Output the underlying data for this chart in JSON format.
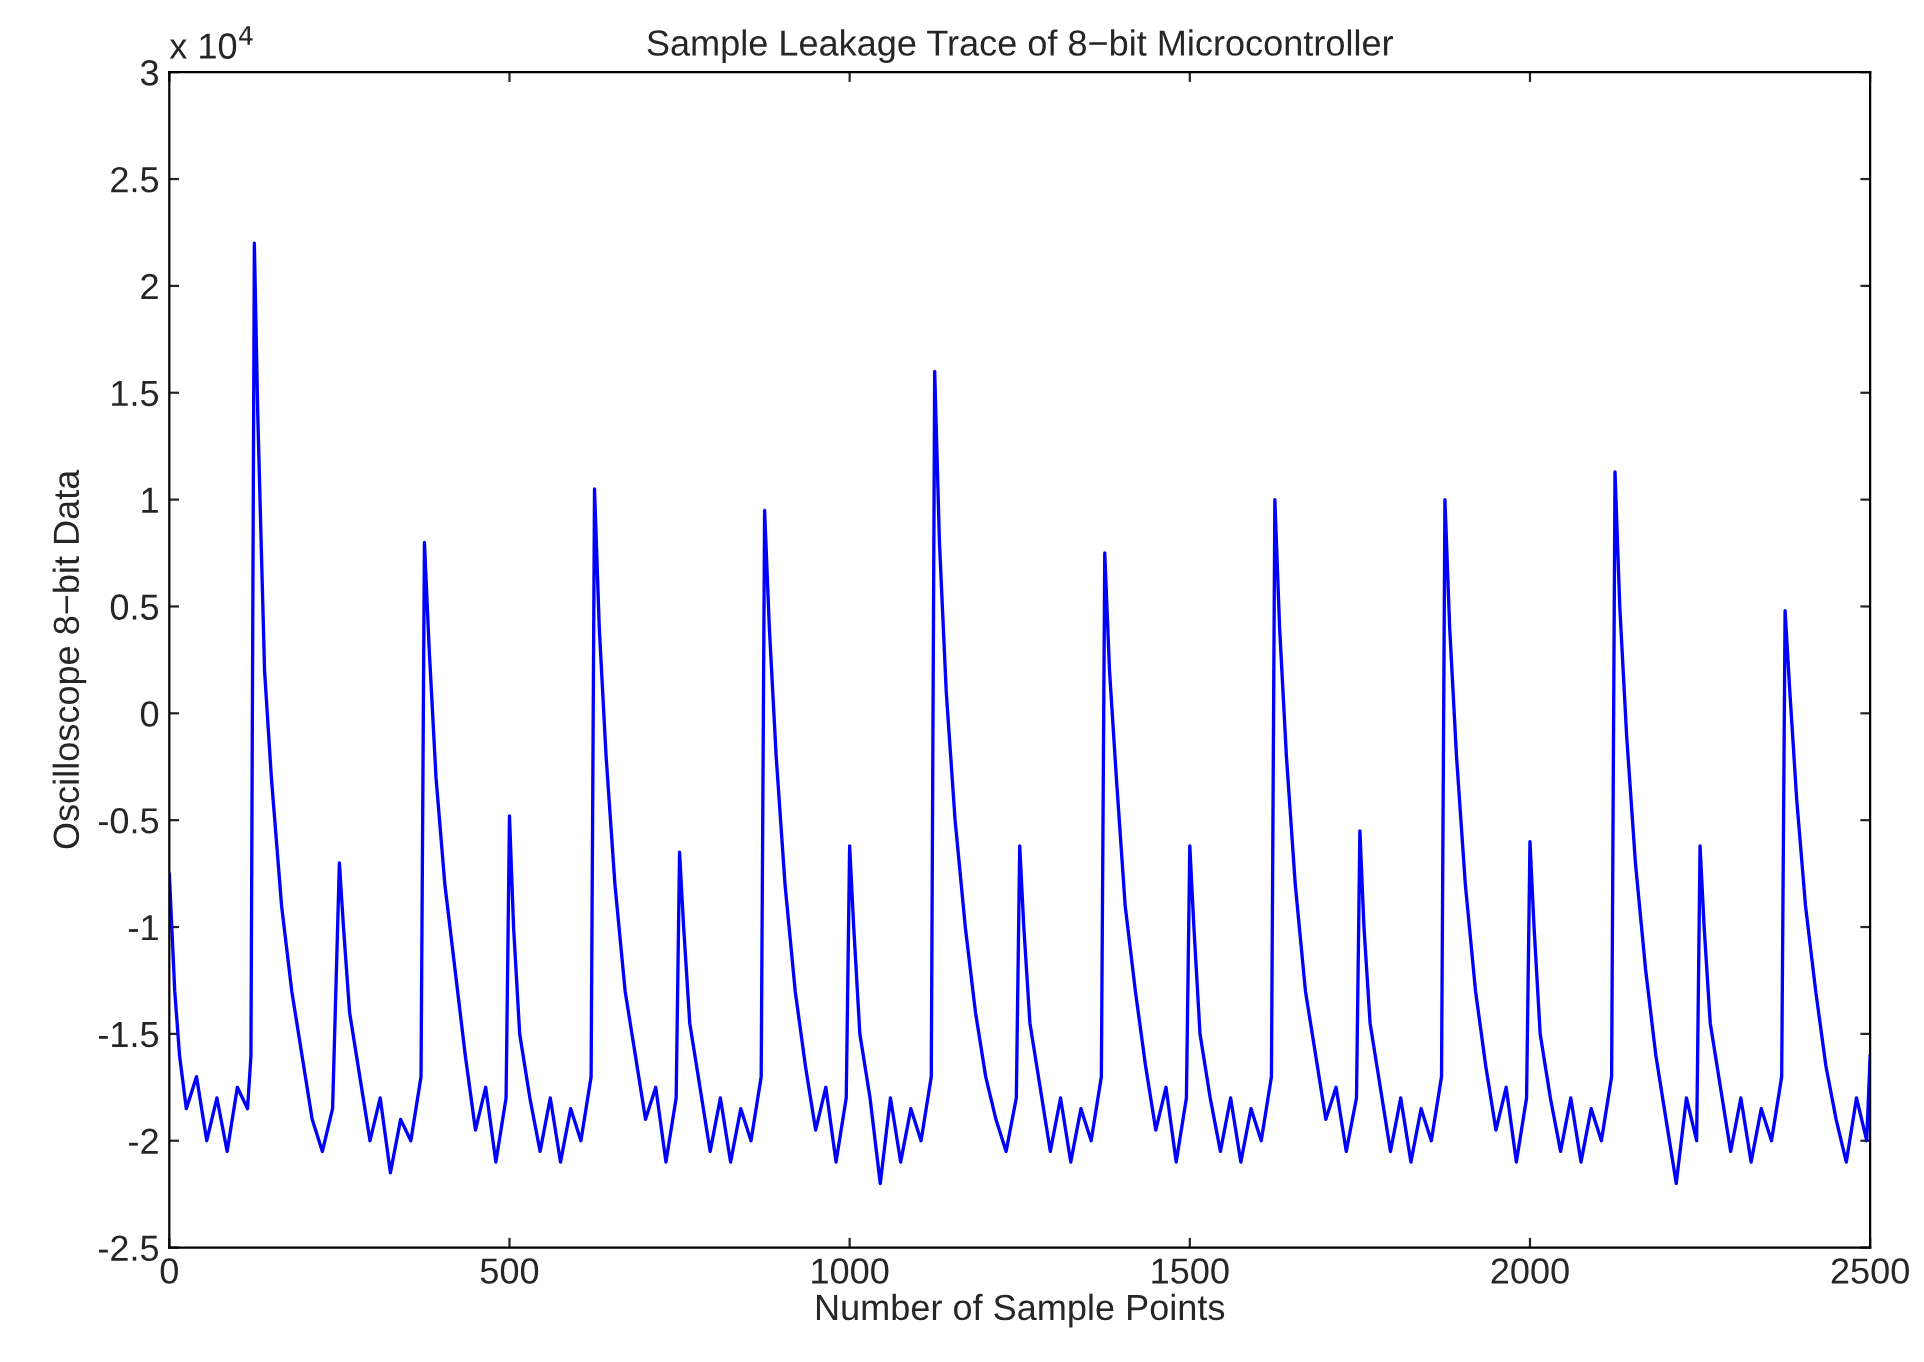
{
  "chart_data": {
    "type": "line",
    "title": "Sample Leakage Trace of 8−bit Microcontroller",
    "xlabel": "Number of Sample Points",
    "ylabel": "Oscilloscope 8−bit Data",
    "annotations": [
      "x 10$^{4}$"
    ],
    "series": [
      {
        "color": "#0000ff",
        "x": [
          0,
          8,
          15,
          25,
          40,
          55,
          70,
          85,
          100,
          115,
          120,
          125,
          130,
          140,
          150,
          165,
          180,
          195,
          210,
          225,
          240,
          250,
          256,
          265,
          280,
          295,
          310,
          325,
          340,
          355,
          370,
          375,
          382,
          392,
          405,
          420,
          435,
          450,
          465,
          480,
          495,
          500,
          506,
          515,
          530,
          545,
          560,
          575,
          590,
          605,
          620,
          625,
          632,
          642,
          655,
          670,
          685,
          700,
          715,
          730,
          745,
          750,
          756,
          765,
          780,
          795,
          810,
          825,
          840,
          855,
          870,
          875,
          882,
          892,
          905,
          920,
          935,
          950,
          965,
          980,
          995,
          1000,
          1006,
          1015,
          1030,
          1045,
          1060,
          1075,
          1090,
          1105,
          1120,
          1125,
          1132,
          1142,
          1155,
          1170,
          1185,
          1200,
          1215,
          1230,
          1245,
          1250,
          1256,
          1265,
          1280,
          1295,
          1310,
          1325,
          1340,
          1355,
          1370,
          1375,
          1382,
          1392,
          1405,
          1420,
          1435,
          1450,
          1465,
          1480,
          1495,
          1500,
          1506,
          1515,
          1530,
          1545,
          1560,
          1575,
          1590,
          1605,
          1620,
          1625,
          1632,
          1642,
          1655,
          1670,
          1685,
          1700,
          1715,
          1730,
          1745,
          1750,
          1756,
          1765,
          1780,
          1795,
          1810,
          1825,
          1840,
          1855,
          1870,
          1875,
          1882,
          1892,
          1905,
          1920,
          1935,
          1950,
          1965,
          1980,
          1995,
          2000,
          2006,
          2015,
          2030,
          2045,
          2060,
          2075,
          2090,
          2105,
          2120,
          2125,
          2132,
          2142,
          2155,
          2170,
          2185,
          2200,
          2215,
          2230,
          2245,
          2250,
          2256,
          2265,
          2280,
          2295,
          2310,
          2325,
          2340,
          2355,
          2370,
          2375,
          2382,
          2392,
          2405,
          2420,
          2435,
          2450,
          2465,
          2480,
          2495,
          2500
        ],
        "values": [
          -0.75,
          -1.3,
          -1.6,
          -1.85,
          -1.7,
          -2.0,
          -1.8,
          -2.05,
          -1.75,
          -1.85,
          -1.6,
          2.2,
          1.4,
          0.2,
          -0.3,
          -0.9,
          -1.3,
          -1.6,
          -1.9,
          -2.05,
          -1.85,
          -0.7,
          -1.0,
          -1.4,
          -1.7,
          -2.0,
          -1.8,
          -2.15,
          -1.9,
          -2.0,
          -1.7,
          0.8,
          0.3,
          -0.3,
          -0.8,
          -1.2,
          -1.6,
          -1.95,
          -1.75,
          -2.1,
          -1.8,
          -0.48,
          -1.0,
          -1.5,
          -1.8,
          -2.05,
          -1.8,
          -2.1,
          -1.85,
          -2.0,
          -1.7,
          1.05,
          0.4,
          -0.2,
          -0.8,
          -1.3,
          -1.6,
          -1.9,
          -1.75,
          -2.1,
          -1.8,
          -0.65,
          -1.0,
          -1.45,
          -1.75,
          -2.05,
          -1.8,
          -2.1,
          -1.85,
          -2.0,
          -1.7,
          0.95,
          0.4,
          -0.2,
          -0.8,
          -1.3,
          -1.65,
          -1.95,
          -1.75,
          -2.1,
          -1.8,
          -0.62,
          -1.0,
          -1.5,
          -1.8,
          -2.2,
          -1.8,
          -2.1,
          -1.85,
          -2.0,
          -1.7,
          1.6,
          0.8,
          0.1,
          -0.5,
          -1.0,
          -1.4,
          -1.7,
          -1.9,
          -2.05,
          -1.8,
          -0.62,
          -1.0,
          -1.45,
          -1.75,
          -2.05,
          -1.8,
          -2.1,
          -1.85,
          -2.0,
          -1.7,
          0.75,
          0.2,
          -0.3,
          -0.9,
          -1.3,
          -1.65,
          -1.95,
          -1.75,
          -2.1,
          -1.8,
          -0.62,
          -1.0,
          -1.5,
          -1.8,
          -2.05,
          -1.8,
          -2.1,
          -1.85,
          -2.0,
          -1.7,
          1.0,
          0.4,
          -0.2,
          -0.8,
          -1.3,
          -1.6,
          -1.9,
          -1.75,
          -2.05,
          -1.8,
          -0.55,
          -1.0,
          -1.45,
          -1.75,
          -2.05,
          -1.8,
          -2.1,
          -1.85,
          -2.0,
          -1.7,
          1.0,
          0.4,
          -0.2,
          -0.8,
          -1.3,
          -1.65,
          -1.95,
          -1.75,
          -2.1,
          -1.8,
          -0.6,
          -1.0,
          -1.5,
          -1.8,
          -2.05,
          -1.8,
          -2.1,
          -1.85,
          -2.0,
          -1.7,
          1.13,
          0.5,
          -0.1,
          -0.7,
          -1.2,
          -1.6,
          -1.9,
          -2.2,
          -1.8,
          -2.0,
          -0.62,
          -1.0,
          -1.45,
          -1.75,
          -2.05,
          -1.8,
          -2.1,
          -1.85,
          -2.0,
          -1.7,
          0.48,
          0.1,
          -0.4,
          -0.9,
          -1.3,
          -1.65,
          -1.9,
          -2.1,
          -1.8,
          -2.0,
          -1.6
        ]
      }
    ],
    "xlim": [
      0,
      2500
    ],
    "xticks": [
      0,
      500,
      1000,
      1500,
      2000,
      2500
    ],
    "ylim": [
      -2.5,
      3
    ],
    "yticks": [
      -2.5,
      -2,
      -1.5,
      -1,
      -0.5,
      0,
      0.5,
      1,
      1.5,
      2,
      2.5,
      3
    ],
    "grid": false,
    "legend": false
  }
}
